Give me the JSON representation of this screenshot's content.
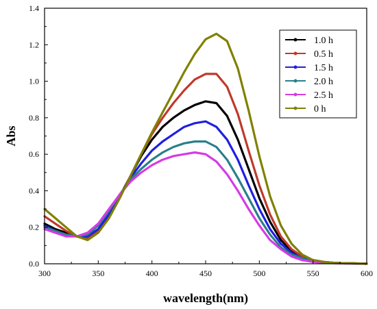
{
  "chart_data": {
    "type": "line",
    "title": "",
    "xlabel": "wavelength(nm)",
    "ylabel": "Abs",
    "xlim": [
      300,
      600
    ],
    "ylim": [
      0.0,
      1.4
    ],
    "xticks": [
      300,
      350,
      400,
      450,
      500,
      550,
      600
    ],
    "yticks": [
      0.0,
      0.2,
      0.4,
      0.6,
      0.8,
      1.0,
      1.2,
      1.4
    ],
    "ytick_labels": [
      "0.0",
      "0.2",
      "0.4",
      "0.6",
      "0.8",
      "1.0",
      "1.2",
      "1.4"
    ],
    "grid": false,
    "legend_position": "top-right",
    "series": [
      {
        "name": "1.0 h",
        "color": "#000000",
        "x": [
          300,
          310,
          320,
          330,
          340,
          350,
          360,
          370,
          380,
          390,
          400,
          410,
          420,
          430,
          440,
          450,
          460,
          470,
          480,
          490,
          500,
          510,
          520,
          530,
          540,
          550,
          560,
          570,
          580,
          590,
          600
        ],
        "y": [
          0.22,
          0.19,
          0.17,
          0.15,
          0.15,
          0.19,
          0.27,
          0.37,
          0.48,
          0.59,
          0.68,
          0.75,
          0.8,
          0.84,
          0.87,
          0.89,
          0.88,
          0.81,
          0.68,
          0.52,
          0.36,
          0.23,
          0.13,
          0.07,
          0.04,
          0.02,
          0.01,
          0.005,
          0.003,
          0.002,
          0.0
        ]
      },
      {
        "name": "0.5 h",
        "color": "#c0392b",
        "x": [
          300,
          310,
          320,
          330,
          340,
          350,
          360,
          370,
          380,
          390,
          400,
          410,
          420,
          430,
          440,
          450,
          460,
          470,
          480,
          490,
          500,
          510,
          520,
          530,
          540,
          550,
          560,
          570,
          580,
          590,
          600
        ],
        "y": [
          0.26,
          0.22,
          0.18,
          0.15,
          0.14,
          0.18,
          0.26,
          0.36,
          0.48,
          0.6,
          0.71,
          0.8,
          0.88,
          0.95,
          1.01,
          1.04,
          1.04,
          0.97,
          0.82,
          0.62,
          0.43,
          0.27,
          0.15,
          0.08,
          0.04,
          0.02,
          0.01,
          0.005,
          0.003,
          0.002,
          0.0
        ]
      },
      {
        "name": "1.5 h",
        "color": "#1f1fe0",
        "x": [
          300,
          310,
          320,
          330,
          340,
          350,
          360,
          370,
          380,
          390,
          400,
          410,
          420,
          430,
          440,
          450,
          460,
          470,
          480,
          490,
          500,
          510,
          520,
          530,
          540,
          550,
          560,
          570,
          580,
          590,
          600
        ],
        "y": [
          0.21,
          0.18,
          0.16,
          0.15,
          0.15,
          0.19,
          0.27,
          0.37,
          0.47,
          0.55,
          0.62,
          0.67,
          0.71,
          0.75,
          0.77,
          0.78,
          0.75,
          0.68,
          0.57,
          0.43,
          0.3,
          0.19,
          0.11,
          0.06,
          0.03,
          0.02,
          0.01,
          0.005,
          0.003,
          0.002,
          0.0
        ]
      },
      {
        "name": "2.0 h",
        "color": "#2a7f8a",
        "x": [
          300,
          310,
          320,
          330,
          340,
          350,
          360,
          370,
          380,
          390,
          400,
          410,
          420,
          430,
          440,
          450,
          460,
          470,
          480,
          490,
          500,
          510,
          520,
          530,
          540,
          550,
          560,
          570,
          580,
          590,
          600
        ],
        "y": [
          0.2,
          0.18,
          0.16,
          0.15,
          0.16,
          0.21,
          0.29,
          0.38,
          0.46,
          0.52,
          0.57,
          0.61,
          0.64,
          0.66,
          0.67,
          0.67,
          0.64,
          0.57,
          0.47,
          0.36,
          0.25,
          0.16,
          0.09,
          0.05,
          0.03,
          0.015,
          0.008,
          0.004,
          0.002,
          0.001,
          0.0
        ]
      },
      {
        "name": "2.5 h",
        "color": "#d63ae6",
        "x": [
          300,
          310,
          320,
          330,
          340,
          350,
          360,
          370,
          380,
          390,
          400,
          410,
          420,
          430,
          440,
          450,
          460,
          470,
          480,
          490,
          500,
          510,
          520,
          530,
          540,
          550,
          560,
          570,
          580,
          590,
          600
        ],
        "y": [
          0.19,
          0.17,
          0.15,
          0.15,
          0.17,
          0.22,
          0.3,
          0.38,
          0.45,
          0.5,
          0.54,
          0.57,
          0.59,
          0.6,
          0.61,
          0.6,
          0.56,
          0.49,
          0.4,
          0.3,
          0.21,
          0.13,
          0.08,
          0.04,
          0.02,
          0.01,
          0.006,
          0.003,
          0.002,
          0.001,
          0.0
        ]
      },
      {
        "name": "0  h",
        "color": "#808000",
        "x": [
          300,
          310,
          320,
          330,
          340,
          350,
          360,
          370,
          380,
          390,
          400,
          410,
          420,
          430,
          440,
          450,
          460,
          470,
          480,
          490,
          500,
          510,
          520,
          530,
          540,
          550,
          560,
          570,
          580,
          590,
          600
        ],
        "y": [
          0.3,
          0.25,
          0.2,
          0.15,
          0.13,
          0.17,
          0.25,
          0.36,
          0.48,
          0.6,
          0.72,
          0.83,
          0.94,
          1.05,
          1.15,
          1.23,
          1.26,
          1.22,
          1.07,
          0.84,
          0.59,
          0.37,
          0.21,
          0.11,
          0.05,
          0.02,
          0.01,
          0.005,
          0.003,
          0.002,
          0.0
        ]
      }
    ],
    "legend_order": [
      0,
      1,
      2,
      3,
      4,
      5
    ]
  }
}
